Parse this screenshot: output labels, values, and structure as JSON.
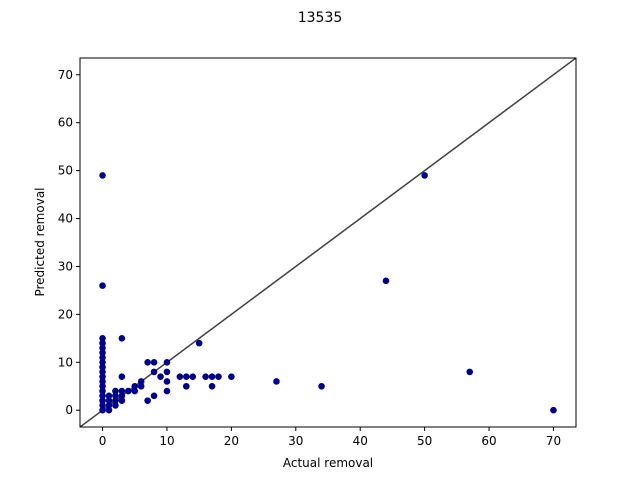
{
  "chart_data": {
    "type": "scatter",
    "title": "13535",
    "xlabel": "Actual removal",
    "ylabel": "Predicted removal",
    "xlim": [
      -3.5,
      73.5
    ],
    "ylim": [
      -3.5,
      73.5
    ],
    "x_ticks": [
      0,
      10,
      20,
      30,
      40,
      50,
      60,
      70
    ],
    "y_ticks": [
      0,
      10,
      20,
      30,
      40,
      50,
      60,
      70
    ],
    "grid": false,
    "marker_color": "#00008b",
    "identity_line_color": "#404040",
    "reference_line": "y = x",
    "points": [
      [
        0,
        49
      ],
      [
        0,
        26
      ],
      [
        0,
        15
      ],
      [
        0,
        14
      ],
      [
        0,
        13
      ],
      [
        0,
        12
      ],
      [
        0,
        11
      ],
      [
        0,
        10
      ],
      [
        0,
        9
      ],
      [
        0,
        8
      ],
      [
        0,
        7
      ],
      [
        0,
        6
      ],
      [
        0,
        5
      ],
      [
        0,
        4
      ],
      [
        0,
        3
      ],
      [
        0,
        2
      ],
      [
        0,
        1
      ],
      [
        0,
        0
      ],
      [
        1,
        0
      ],
      [
        1,
        1
      ],
      [
        1,
        2
      ],
      [
        1,
        3
      ],
      [
        2,
        1
      ],
      [
        2,
        2
      ],
      [
        2,
        3
      ],
      [
        2,
        4
      ],
      [
        3,
        15
      ],
      [
        3,
        7
      ],
      [
        3,
        4
      ],
      [
        3,
        3
      ],
      [
        3,
        2
      ],
      [
        4,
        4
      ],
      [
        5,
        4
      ],
      [
        5,
        5
      ],
      [
        6,
        5
      ],
      [
        6,
        6
      ],
      [
        7,
        10
      ],
      [
        7,
        2
      ],
      [
        8,
        10
      ],
      [
        8,
        8
      ],
      [
        8,
        3
      ],
      [
        9,
        7
      ],
      [
        10,
        10
      ],
      [
        10,
        8
      ],
      [
        10,
        6
      ],
      [
        10,
        4
      ],
      [
        12,
        7
      ],
      [
        13,
        7
      ],
      [
        13,
        5
      ],
      [
        14,
        7
      ],
      [
        15,
        14
      ],
      [
        16,
        7
      ],
      [
        17,
        7
      ],
      [
        17,
        5
      ],
      [
        18,
        7
      ],
      [
        20,
        7
      ],
      [
        27,
        6
      ],
      [
        34,
        5
      ],
      [
        44,
        27
      ],
      [
        50,
        49
      ],
      [
        57,
        8
      ],
      [
        70,
        0
      ]
    ]
  }
}
